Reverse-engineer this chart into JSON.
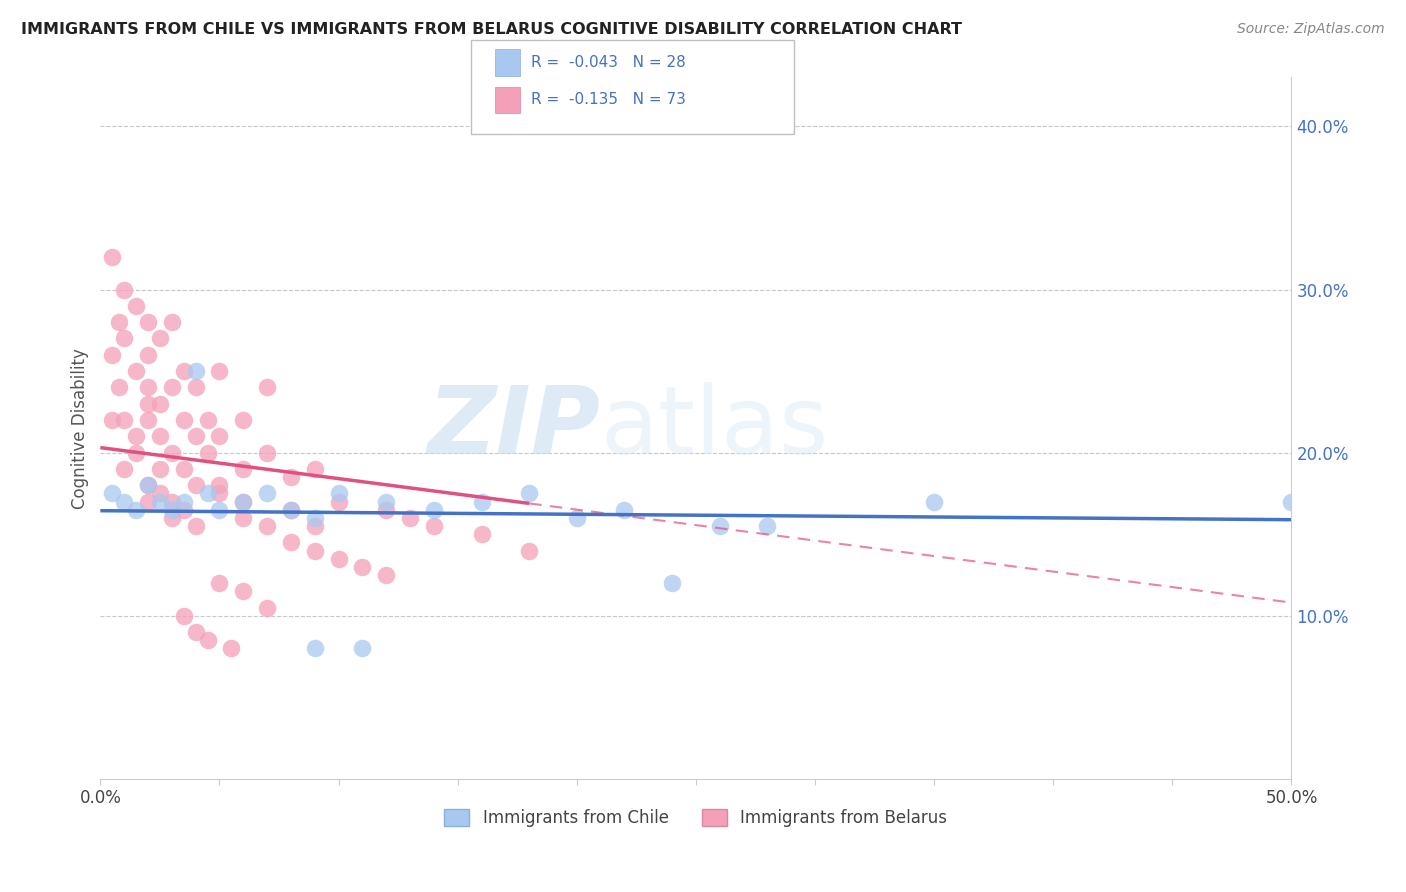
{
  "title": "IMMIGRANTS FROM CHILE VS IMMIGRANTS FROM BELARUS COGNITIVE DISABILITY CORRELATION CHART",
  "source": "Source: ZipAtlas.com",
  "ylabel": "Cognitive Disability",
  "xlim": [
    0.0,
    0.5
  ],
  "ylim": [
    0.0,
    0.43
  ],
  "watermark_zip": "ZIP",
  "watermark_atlas": "atlas",
  "legend_label1": "Immigrants from Chile",
  "legend_label2": "Immigrants from Belarus",
  "r1": -0.043,
  "n1": 28,
  "r2": -0.135,
  "n2": 73,
  "color_chile": "#a8c8f0",
  "color_belarus": "#f4a0b8",
  "trendline_chile": "#4472c4",
  "trendline_belarus": "#e05080",
  "background_color": "#ffffff",
  "chile_x": [
    0.005,
    0.01,
    0.015,
    0.02,
    0.025,
    0.03,
    0.035,
    0.04,
    0.045,
    0.05,
    0.06,
    0.07,
    0.08,
    0.09,
    0.1,
    0.12,
    0.14,
    0.16,
    0.18,
    0.2,
    0.22,
    0.24,
    0.26,
    0.28,
    0.35,
    0.5,
    0.09,
    0.11
  ],
  "chile_y": [
    0.175,
    0.17,
    0.165,
    0.18,
    0.17,
    0.165,
    0.17,
    0.25,
    0.175,
    0.165,
    0.17,
    0.175,
    0.165,
    0.16,
    0.175,
    0.17,
    0.165,
    0.17,
    0.175,
    0.16,
    0.165,
    0.12,
    0.155,
    0.155,
    0.17,
    0.17,
    0.08,
    0.08
  ],
  "belarus_x": [
    0.005,
    0.005,
    0.005,
    0.008,
    0.008,
    0.01,
    0.01,
    0.01,
    0.01,
    0.015,
    0.015,
    0.015,
    0.02,
    0.02,
    0.02,
    0.02,
    0.02,
    0.025,
    0.025,
    0.025,
    0.03,
    0.03,
    0.03,
    0.03,
    0.035,
    0.035,
    0.035,
    0.04,
    0.04,
    0.04,
    0.045,
    0.045,
    0.05,
    0.05,
    0.05,
    0.06,
    0.06,
    0.06,
    0.07,
    0.07,
    0.08,
    0.08,
    0.09,
    0.09,
    0.1,
    0.12,
    0.13,
    0.14,
    0.16,
    0.18,
    0.02,
    0.025,
    0.03,
    0.035,
    0.04,
    0.05,
    0.06,
    0.07,
    0.08,
    0.09,
    0.1,
    0.11,
    0.12,
    0.05,
    0.06,
    0.07,
    0.035,
    0.04,
    0.045,
    0.055,
    0.015,
    0.02,
    0.025
  ],
  "belarus_y": [
    0.22,
    0.26,
    0.32,
    0.28,
    0.24,
    0.3,
    0.27,
    0.22,
    0.19,
    0.29,
    0.25,
    0.2,
    0.26,
    0.22,
    0.28,
    0.18,
    0.24,
    0.21,
    0.27,
    0.23,
    0.24,
    0.2,
    0.17,
    0.28,
    0.22,
    0.19,
    0.25,
    0.21,
    0.24,
    0.18,
    0.2,
    0.22,
    0.21,
    0.18,
    0.25,
    0.19,
    0.22,
    0.17,
    0.2,
    0.24,
    0.185,
    0.165,
    0.19,
    0.155,
    0.17,
    0.165,
    0.16,
    0.155,
    0.15,
    0.14,
    0.17,
    0.175,
    0.16,
    0.165,
    0.155,
    0.175,
    0.16,
    0.155,
    0.145,
    0.14,
    0.135,
    0.13,
    0.125,
    0.12,
    0.115,
    0.105,
    0.1,
    0.09,
    0.085,
    0.08,
    0.21,
    0.23,
    0.19
  ]
}
